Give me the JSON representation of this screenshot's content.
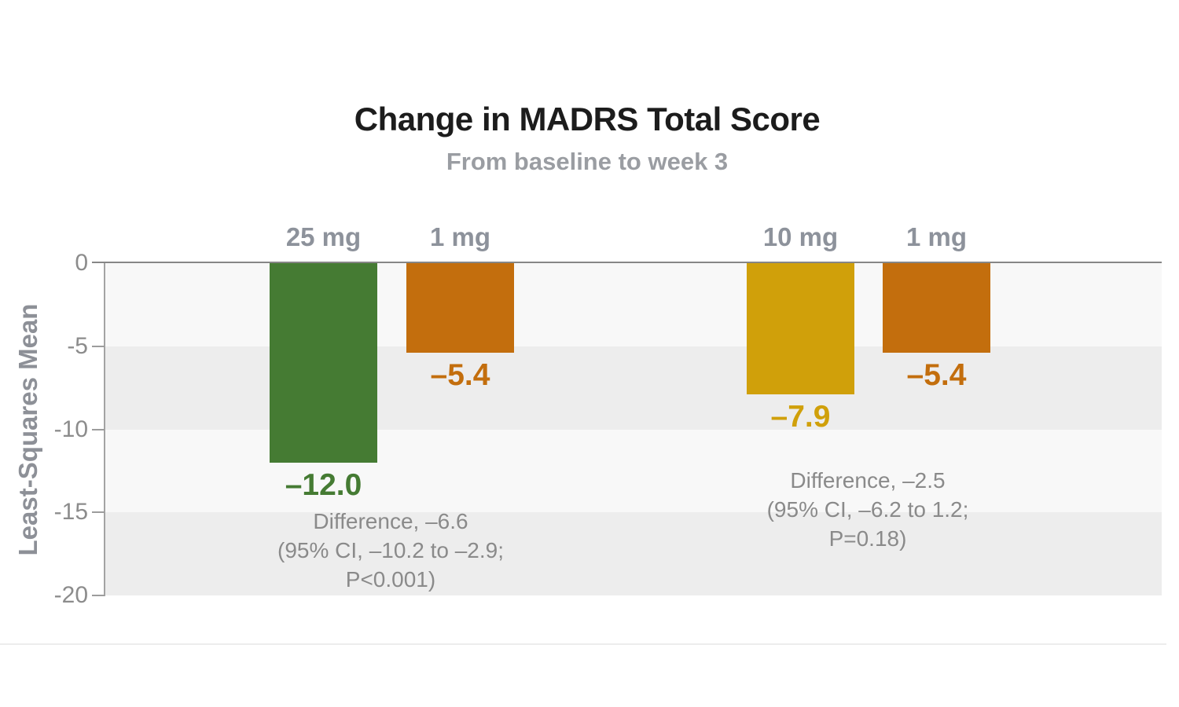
{
  "chart_data": {
    "type": "bar",
    "title": "Change in MADRS Total Score",
    "subtitle": "From baseline to week 3",
    "ylabel": "Least-Squares Mean",
    "xlabel": "",
    "ylim": [
      -20,
      0
    ],
    "ytick_labels": [
      "0",
      "-5",
      "-10",
      "-15",
      "-20"
    ],
    "ytick_values": [
      0,
      -5,
      -10,
      -15,
      -20
    ],
    "grid": "horizontal-bands",
    "legend_position": "none",
    "band_colors": [
      "#f8f8f8",
      "#ededed",
      "#f8f8f8",
      "#ededed"
    ],
    "groups": [
      {
        "bars": [
          {
            "label": "25 mg",
            "value": -12.0,
            "value_display": "–12.0",
            "color": "#457b33"
          },
          {
            "label": "1 mg",
            "value": -5.4,
            "value_display": "–5.4",
            "color": "#c36e0d"
          }
        ],
        "annotation_lines": [
          "Difference, –6.6",
          "(95% CI, –10.2 to –2.9;",
          "P<0.001)"
        ]
      },
      {
        "bars": [
          {
            "label": "10 mg",
            "value": -7.9,
            "value_display": "–7.9",
            "color": "#d0a00a"
          },
          {
            "label": "1 mg",
            "value": -5.4,
            "value_display": "–5.4",
            "color": "#c36e0d"
          }
        ],
        "annotation_lines": [
          "Difference, –2.5",
          "(95% CI, –6.2 to 1.2;",
          "P=0.18)"
        ]
      }
    ]
  }
}
